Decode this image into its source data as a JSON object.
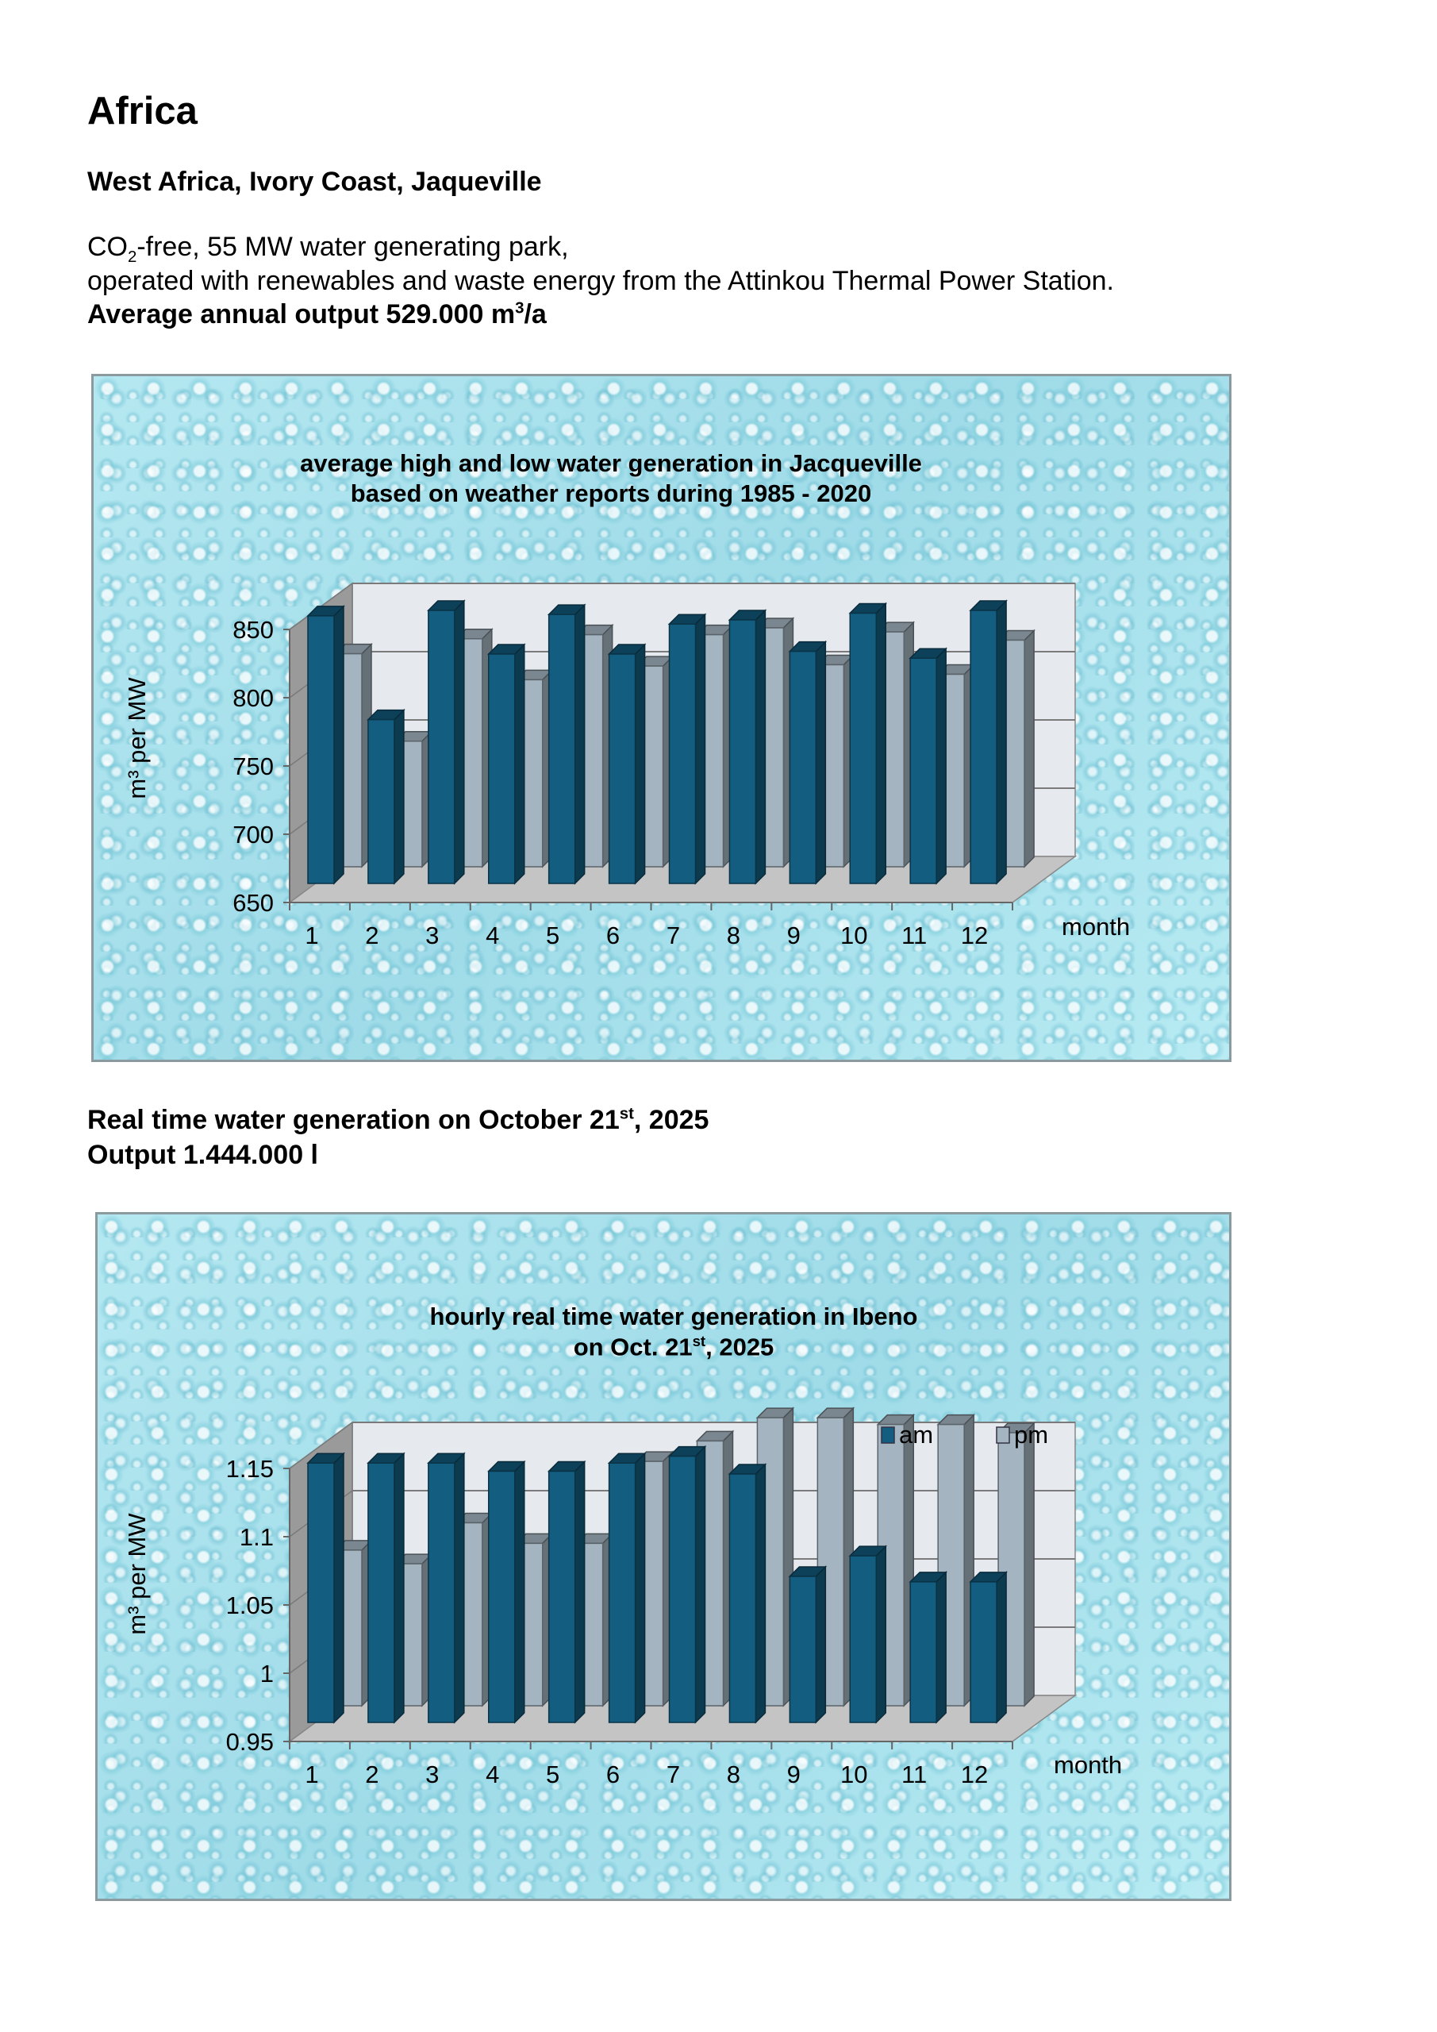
{
  "heading": "Africa",
  "location": "West Africa, Ivory Coast, Jaqueville",
  "intro": {
    "line1_pre": "CO",
    "line1_sub": "2",
    "line1_post": "-free, 55 MW water generating park,",
    "line2": "operated with renewables and waste energy from the Attinkou Thermal Power Station.",
    "line3_pre": "Average annual output 529.000 m",
    "line3_sup": "3",
    "line3_post": "/a"
  },
  "realtime": {
    "line1_pre": "Real time water generation on October 21",
    "line1_sup": "st",
    "line1_post": ", 2025",
    "line2": "Output 1.444.000 l"
  },
  "colors": {
    "series_dark": "#135d80",
    "series_light": "#a4b4c0",
    "wall": "#e6eaee",
    "side_wall": "#9a9a9a",
    "floor": "#c4c4c4",
    "background": "#a9e3ee"
  },
  "chart_data": [
    {
      "type": "bar",
      "style": "3d-column",
      "title_line1": "average high and low water generation in Jacqueville",
      "title_line2": "based on weather reports during 1985 - 2020",
      "xlabel": "month",
      "ylabel": "m³ per MW",
      "ylim": [
        650,
        850
      ],
      "yticks": [
        "650",
        "700",
        "750",
        "800",
        "850"
      ],
      "categories": [
        "1",
        "2",
        "3",
        "4",
        "5",
        "6",
        "7",
        "8",
        "9",
        "10",
        "11",
        "12"
      ],
      "grid": true,
      "series": [
        {
          "values": [
            846,
            770,
            850,
            818,
            847,
            818,
            840,
            843,
            820,
            848,
            815,
            850
          ]
        },
        {
          "values": [
            806,
            742,
            817,
            787,
            820,
            797,
            820,
            825,
            798,
            822,
            791,
            816
          ]
        }
      ]
    },
    {
      "type": "bar",
      "style": "3d-column",
      "title_line1": "hourly real time water generation in Ibeno",
      "title_line2_pre": "on Oct. 21",
      "title_line2_sup": "st",
      "title_line2_post": ", 2025",
      "xlabel": "month",
      "ylabel": "m³ per MW",
      "ylim": [
        0.95,
        1.15
      ],
      "yticks": [
        "0.95",
        "1",
        "1.05",
        "1.1",
        "1.15"
      ],
      "categories": [
        "1",
        "2",
        "3",
        "4",
        "5",
        "6",
        "7",
        "8",
        "9",
        "10",
        "11",
        "12"
      ],
      "grid": true,
      "legend_placement": "top-right",
      "series": [
        {
          "name": "am",
          "values": [
            1.14,
            1.14,
            1.14,
            1.134,
            1.134,
            1.14,
            1.145,
            1.132,
            1.057,
            1.072,
            1.053,
            1.053
          ]
        },
        {
          "name": "pm",
          "values": [
            1.064,
            1.054,
            1.084,
            1.069,
            1.069,
            1.129,
            1.144,
            1.161,
            1.161,
            1.156,
            1.156,
            1.15
          ]
        }
      ]
    }
  ]
}
